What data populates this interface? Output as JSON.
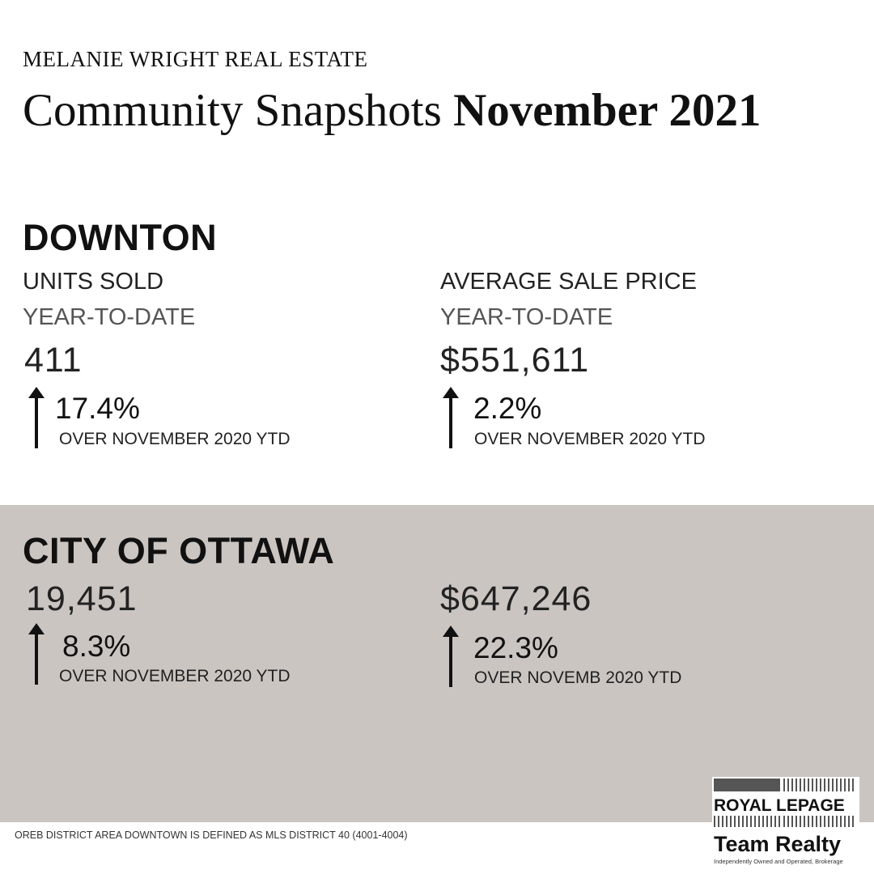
{
  "header": {
    "brand": "MELANIE WRIGHT REAL ESTATE",
    "title_light": "Community Snapshots ",
    "title_bold": "November 2021"
  },
  "downton": {
    "name": "DOWNTON",
    "units": {
      "label": "UNITS SOLD",
      "sublabel": "YEAR-TO-DATE",
      "value": "411",
      "change": "17.4%",
      "note": "OVER NOVEMBER 2020 YTD"
    },
    "price": {
      "label": "AVERAGE SALE PRICE",
      "sublabel": "YEAR-TO-DATE",
      "value": "$551,611",
      "change": "2.2%",
      "note": "OVER NOVEMBER  2020 YTD"
    }
  },
  "ottawa": {
    "name": "CITY OF OTTAWA",
    "units": {
      "value": "19,451",
      "change": "8.3%",
      "note": "OVER NOVEMBER 2020 YTD"
    },
    "price": {
      "value": "$647,246",
      "change": "22.3%",
      "note": "OVER NOVEMB 2020 YTD"
    }
  },
  "footer": {
    "note": "OREB DISTRICT AREA DOWNTOWN IS DEFINED AS MLS DISTRICT 40 (4001-4004)"
  },
  "logo": {
    "line1": "ROYAL LEPAGE",
    "line2": "Team Realty",
    "line3": "Independently Owned and Operated, Brokerage"
  },
  "colors": {
    "band": "#cbc5c1",
    "text": "#111111"
  },
  "icons": [
    "arrow-up-icon"
  ]
}
